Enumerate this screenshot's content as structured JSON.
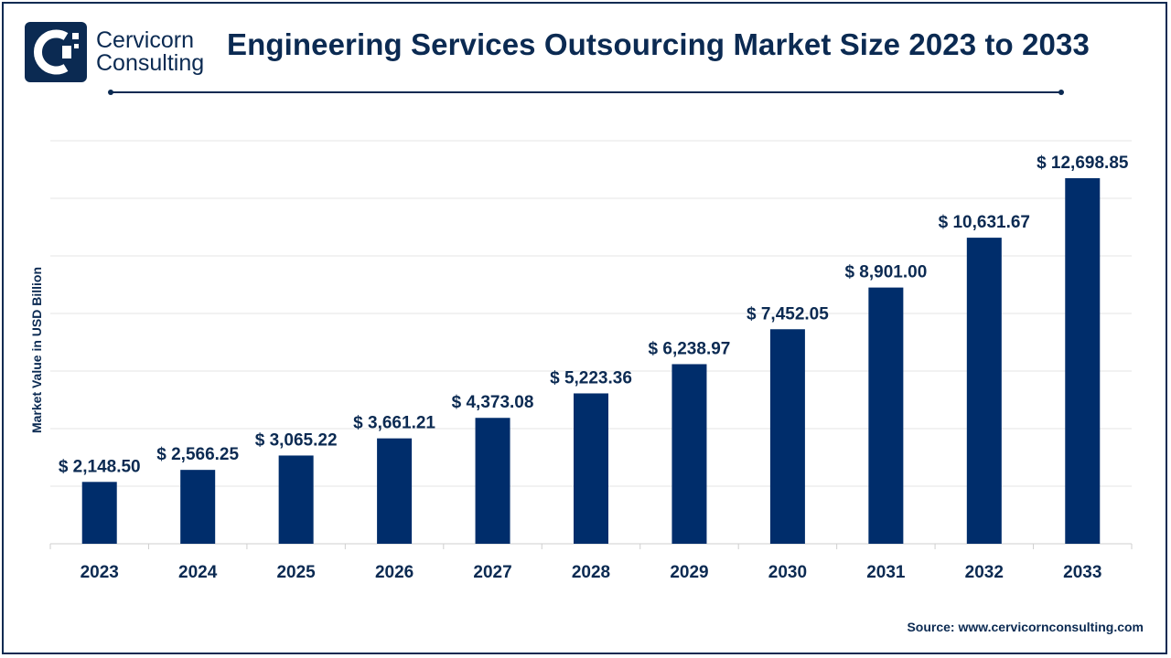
{
  "logo": {
    "line1": "Cervicorn",
    "line2": "Consulting"
  },
  "title": "Engineering Services Outsourcing Market Size 2023 to 2033",
  "source": "Source: www.cervicornconsulting.com",
  "colors": {
    "bar": "#002d6b",
    "text": "#0b2a52",
    "grid": "#e6e6e6",
    "frame": "#0b2a52"
  },
  "chart_data": {
    "type": "bar",
    "ylabel": "Market Value in USD Billion",
    "xlabel": "",
    "categories": [
      "2023",
      "2024",
      "2025",
      "2026",
      "2027",
      "2028",
      "2029",
      "2030",
      "2031",
      "2032",
      "2033"
    ],
    "values": [
      2148.5,
      2566.25,
      3065.22,
      3661.21,
      4373.08,
      5223.36,
      6238.97,
      7452.05,
      8901.0,
      10631.67,
      12698.85
    ],
    "data_labels": [
      "$ 2,148.50",
      "$ 2,566.25",
      "$ 3,065.22",
      "$ 3,661.21",
      "$ 4,373.08",
      "$ 5,223.36",
      "$ 6,238.97",
      "$ 7,452.05",
      "$ 8,901.00",
      "$ 10,631.67",
      "$ 12,698.85"
    ],
    "ylim": [
      0,
      14000
    ],
    "grid": true,
    "legend": "none"
  }
}
